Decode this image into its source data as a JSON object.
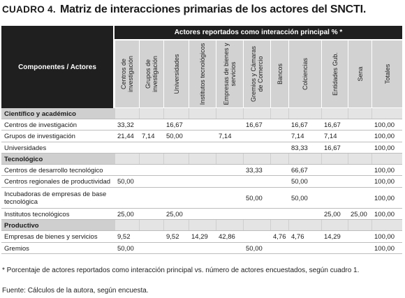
{
  "title": {
    "label": "CUADRO 4.",
    "text": "Matriz de interacciones primarias de los actores del SNCTI."
  },
  "header": {
    "row_header": "Componentes / Actores",
    "span_header": "Actores reportados como interacción principal % *",
    "columns": [
      "Centros de investigación",
      "Grupos de investigación",
      "Universidades",
      "Institutos tecnológicos",
      "Empresas de bienes y servicios",
      "Gremios y Cámaras de Comercio",
      "Bancos",
      "Colciencias",
      "Entidades Gub.",
      "Sena",
      "Totales"
    ]
  },
  "rows": [
    {
      "label": "Científico y académico",
      "section": true,
      "values": [
        "",
        "",
        "",
        "",
        "",
        "",
        "",
        "",
        "",
        "",
        ""
      ]
    },
    {
      "label": "Centros de investigación",
      "section": false,
      "values": [
        "33,32",
        "",
        "16,67",
        "",
        "",
        "16,67",
        "",
        "16,67",
        "16,67",
        "",
        "100,00"
      ]
    },
    {
      "label": "Grupos de investigación",
      "section": false,
      "values": [
        "21,44",
        "7,14",
        "50,00",
        "",
        "7,14",
        "",
        "",
        "7,14",
        "7,14",
        "",
        "100,00"
      ]
    },
    {
      "label": "Universidades",
      "section": false,
      "values": [
        "",
        "",
        "",
        "",
        "",
        "",
        "",
        "83,33",
        "16,67",
        "",
        "100,00"
      ]
    },
    {
      "label": "Tecnológico",
      "section": true,
      "values": [
        "",
        "",
        "",
        "",
        "",
        "",
        "",
        "",
        "",
        "",
        ""
      ]
    },
    {
      "label": "Centros de desarrollo tecnológico",
      "section": false,
      "values": [
        "",
        "",
        "",
        "",
        "",
        "33,33",
        "",
        "66,67",
        "",
        "",
        "100,00"
      ]
    },
    {
      "label": "Centros regionales de productividad",
      "section": false,
      "values": [
        "50,00",
        "",
        "",
        "",
        "",
        "",
        "",
        "50,00",
        "",
        "",
        "100,00"
      ]
    },
    {
      "label": "Incubadoras de empresas de base tecnológica",
      "section": false,
      "values": [
        "",
        "",
        "",
        "",
        "",
        "50,00",
        "",
        "50,00",
        "",
        "",
        "100,00"
      ]
    },
    {
      "label": "Institutos tecnológicos",
      "section": false,
      "values": [
        "25,00",
        "",
        "25,00",
        "",
        "",
        "",
        "",
        "",
        "25,00",
        "25,00",
        "100,00"
      ]
    },
    {
      "label": "Productivo",
      "section": true,
      "values": [
        "",
        "",
        "",
        "",
        "",
        "",
        "",
        "",
        "",
        "",
        ""
      ]
    },
    {
      "label": "Empresas de bienes y servicios",
      "section": false,
      "values": [
        "9,52",
        "",
        "9,52",
        "14,29",
        "42,86",
        "",
        "4,76",
        "4,76",
        "14,29",
        "",
        "100,00"
      ]
    },
    {
      "label": "Gremios",
      "section": false,
      "values": [
        "50,00",
        "",
        "",
        "",
        "",
        "50,00",
        "",
        "",
        "",
        "",
        "100,00"
      ]
    }
  ],
  "footnotes": {
    "note": "* Porcentaje de actores reportados como interacción principal vs. número de actores encuestados, según cuadro 1.",
    "source": "Fuente: Cálculos de la autora, según encuesta."
  }
}
